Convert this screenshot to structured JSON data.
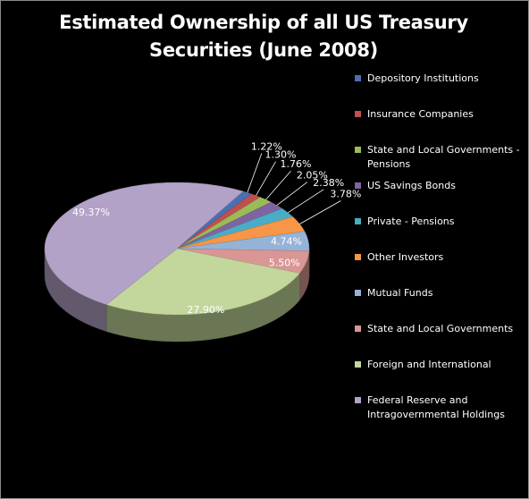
{
  "chart_data": {
    "type": "pie",
    "title": "Estimated Ownership of all US Treasury\nSecurities (June 2008)",
    "legend_position": "right",
    "three_d": true,
    "slices": [
      {
        "label": "Depository Institutions",
        "value": 1.22,
        "value_label": "1.22%",
        "color": "#4A6FB2"
      },
      {
        "label": "Insurance Companies",
        "value": 1.3,
        "value_label": "1.30%",
        "color": "#C0504D"
      },
      {
        "label": "State and Local Governments - Pensions",
        "value": 1.76,
        "value_label": "1.76%",
        "color": "#9BBB59"
      },
      {
        "label": "US Savings Bonds",
        "value": 2.05,
        "value_label": "2.05%",
        "color": "#8064A2"
      },
      {
        "label": "Private - Pensions",
        "value": 2.38,
        "value_label": "2.38%",
        "color": "#4BACC6"
      },
      {
        "label": "Other Investors",
        "value": 3.78,
        "value_label": "3.78%",
        "color": "#F79646"
      },
      {
        "label": "Mutual Funds",
        "value": 4.74,
        "value_label": "4.74%",
        "color": "#95B3D7"
      },
      {
        "label": "State and Local Governments",
        "value": 5.5,
        "value_label": "5.50%",
        "color": "#D99694"
      },
      {
        "label": "Foreign and International",
        "value": 27.9,
        "value_label": "27.90%",
        "color": "#C3D69B"
      },
      {
        "label": "Federal Reserve and Intragovernmental Holdings",
        "value": 49.37,
        "value_label": "49.37%",
        "color": "#B3A2C7"
      }
    ]
  }
}
